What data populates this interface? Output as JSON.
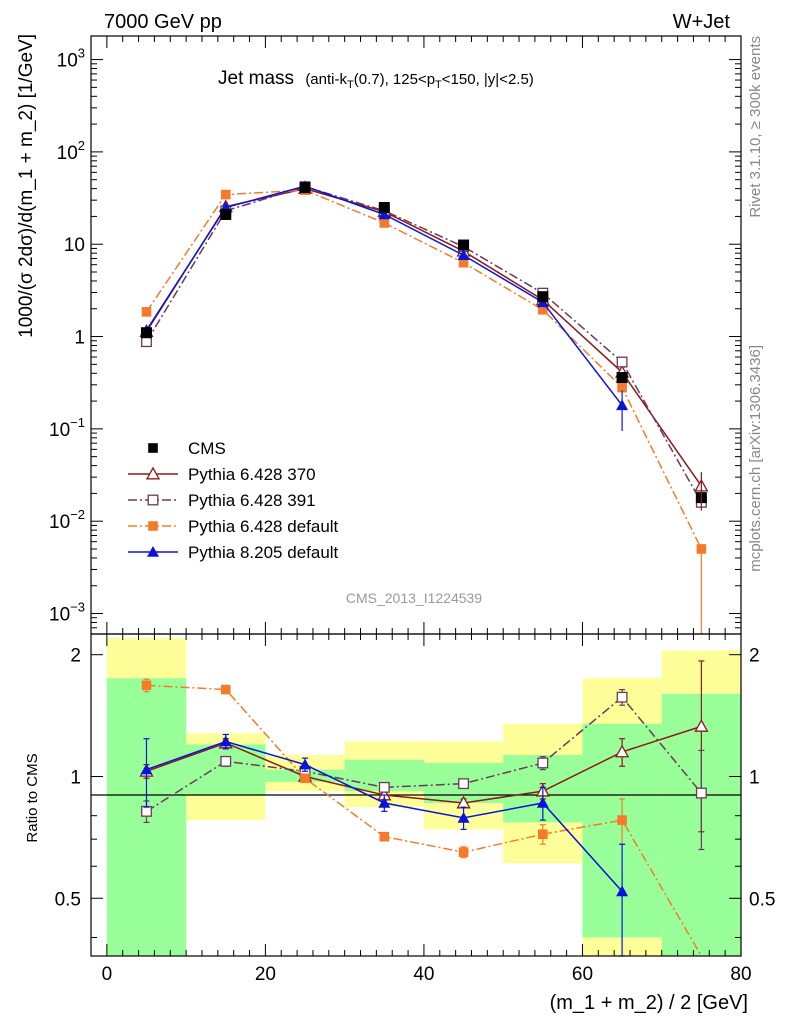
{
  "header": {
    "left": "7000 GeV pp",
    "right": "W+Jet"
  },
  "side_labels": {
    "rivet": "Rivet 3.1.10, ≥ 300k events",
    "mcplots": "mcplots.cern.ch [arXiv:1306.3436]"
  },
  "chart_data": {
    "type": "line",
    "title_main": "Jet mass",
    "title_sub_1": "(anti-k",
    "title_sub_T1": "T",
    "title_sub_2": "(0.7), 125<p",
    "title_sub_T2": "T",
    "title_sub_3": "<150, |y|<2.5)",
    "watermark": "CMS_2013_I1224539",
    "xlabel": "(m_1 + m_2) / 2 [GeV]",
    "ylabel": "1000/(σ 2dσ)/d(m_1 + m_2) [1/GeV]",
    "ratio_ylabel": "Ratio to CMS",
    "xlim": [
      -2,
      80
    ],
    "ylim": [
      0.0006,
      1800
    ],
    "yscale": "log",
    "ratio_ylim": [
      0.36,
      2.25
    ],
    "ratio_yscale": "log",
    "x_ticks": [
      "0",
      "20",
      "40",
      "60",
      "80"
    ],
    "y_ticks": [
      {
        "base": "10",
        "exp": "−3",
        "value": 0.001
      },
      {
        "base": "10",
        "exp": "−2",
        "value": 0.01
      },
      {
        "base": "10",
        "exp": "−1",
        "value": 0.1
      },
      {
        "base": "1",
        "exp": "",
        "value": 1
      },
      {
        "base": "10",
        "exp": "",
        "value": 10
      },
      {
        "base": "10",
        "exp": "2",
        "value": 100
      },
      {
        "base": "10",
        "exp": "3",
        "value": 1000
      }
    ],
    "ratio_ticks": [
      {
        "label": "2",
        "value": 2
      },
      {
        "label": "1",
        "value": 1
      },
      {
        "label": "0.5",
        "value": 0.5
      }
    ],
    "bin_edges": [
      0,
      10,
      20,
      30,
      40,
      50,
      60,
      70,
      80
    ],
    "x": [
      5,
      15,
      25,
      35,
      45,
      55,
      65,
      75
    ],
    "data": {
      "name": "CMS",
      "color": "#000000",
      "values": [
        1.1,
        21.0,
        41.0,
        25.0,
        9.8,
        2.7,
        0.36,
        0.018
      ]
    },
    "band_inner": [
      [
        0.35,
        1.75
      ],
      [
        0.9,
        1.2
      ],
      [
        0.97,
        1.04
      ],
      [
        0.92,
        1.1
      ],
      [
        0.86,
        1.08
      ],
      [
        0.77,
        1.13
      ],
      [
        0.4,
        1.35
      ],
      [
        0.36,
        1.6
      ]
    ],
    "band_outer": [
      [
        0.35,
        2.2
      ],
      [
        0.78,
        1.28
      ],
      [
        0.92,
        1.13
      ],
      [
        0.84,
        1.22
      ],
      [
        0.74,
        1.22
      ],
      [
        0.61,
        1.35
      ],
      [
        0.36,
        1.75
      ],
      [
        0.36,
        2.05
      ]
    ],
    "series": [
      {
        "name": "Pythia 6.428 370",
        "color": "#8b1a1a",
        "dash": "",
        "marker": "triangle-open",
        "values": [
          1.13,
          25.5,
          40.0,
          22.5,
          8.4,
          2.5,
          0.41,
          0.024
        ],
        "ratio": [
          1.03,
          1.21,
          1.0,
          0.9,
          0.86,
          0.92,
          1.15,
          1.33
        ],
        "ratio_err": [
          0.04,
          0.03,
          0.03,
          0.02,
          0.02,
          0.04,
          0.09,
          0.6
        ]
      },
      {
        "name": "Pythia 6.428 391",
        "color": "#6b3a5a",
        "dash": "9,3,2,3",
        "marker": "square-open",
        "values": [
          0.88,
          23.0,
          42.0,
          23.0,
          9.4,
          2.95,
          0.53,
          0.016
        ],
        "ratio": [
          0.82,
          1.09,
          1.03,
          0.94,
          0.96,
          1.08,
          1.57,
          0.91
        ],
        "ratio_err": [
          0.05,
          0.03,
          0.03,
          0.02,
          0.02,
          0.04,
          0.07,
          0.25
        ]
      },
      {
        "name": "Pythia 6.428 default",
        "color": "#f47b2a",
        "dash": "9,3,2,3",
        "marker": "square-filled",
        "values": [
          1.85,
          34.5,
          38.5,
          17.0,
          6.3,
          1.95,
          0.28,
          0.005
        ],
        "ratio": [
          1.68,
          1.64,
          0.99,
          0.71,
          0.65,
          0.72,
          0.78,
          0.28
        ],
        "ratio_err": [
          0.06,
          0.02,
          0.02,
          0.01,
          0.02,
          0.04,
          0.1,
          0.0
        ]
      },
      {
        "name": "Pythia 8.205 default",
        "color": "#0a14d8",
        "dash": "",
        "marker": "triangle-filled",
        "values": [
          1.17,
          25.0,
          42.5,
          21.0,
          7.6,
          2.35,
          0.18,
          null
        ],
        "ratio": [
          1.04,
          1.22,
          1.07,
          0.86,
          0.79,
          0.86,
          0.52,
          null
        ],
        "ratio_err": [
          0.2,
          0.05,
          0.04,
          0.04,
          0.05,
          0.08,
          0.16,
          null
        ]
      }
    ],
    "legend_position": "lower-left"
  }
}
